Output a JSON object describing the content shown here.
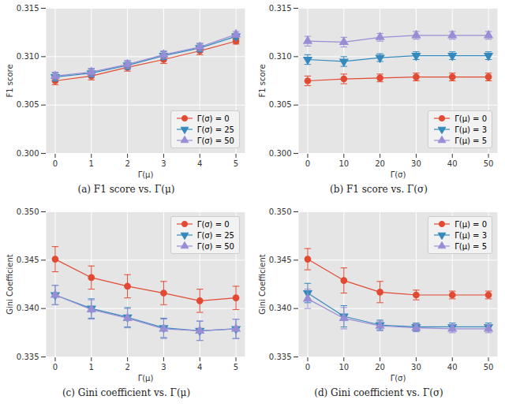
{
  "chart_data": [
    {
      "type": "line",
      "title": "(a) F1 score vs. Γ(μ)",
      "x_label": "Γ(μ)",
      "y_label": "F1 score",
      "x": [
        0,
        1,
        2,
        3,
        4,
        5
      ],
      "xlim": [
        -0.25,
        5.25
      ],
      "xticks": [
        0,
        1,
        2,
        3,
        4,
        5
      ],
      "ylim": [
        0.3,
        0.315
      ],
      "yticks": [
        {
          "value": 0.3,
          "label": "0.300"
        },
        {
          "value": 0.305,
          "label": "0.305"
        },
        {
          "value": 0.31,
          "label": "0.310"
        },
        {
          "value": 0.315,
          "label": "0.315"
        }
      ],
      "grid": true,
      "legend": "lower right",
      "series": [
        {
          "name": "Γ(σ) = 0",
          "color": "#e24a33",
          "marker": "circle",
          "values": [
            0.3075,
            0.308,
            0.3089,
            0.3097,
            0.3106,
            0.3116
          ],
          "errors": [
            0.0004,
            0.0004,
            0.0004,
            0.0004,
            0.0004,
            0.0003
          ]
        },
        {
          "name": "Γ(σ) = 25",
          "color": "#348abd",
          "marker": "triangle-down",
          "values": [
            0.3079,
            0.3083,
            0.3091,
            0.3101,
            0.3109,
            0.3121
          ],
          "errors": [
            0.0004,
            0.0004,
            0.0004,
            0.0004,
            0.0004,
            0.0003
          ]
        },
        {
          "name": "Γ(σ) = 50",
          "color": "#988ed5",
          "marker": "triangle-up",
          "values": [
            0.308,
            0.3084,
            0.3092,
            0.3102,
            0.311,
            0.3123
          ],
          "errors": [
            0.0004,
            0.0004,
            0.0004,
            0.0004,
            0.0004,
            0.0003
          ]
        }
      ]
    },
    {
      "type": "line",
      "title": "(b) F1 score vs. Γ(σ)",
      "x_label": "Γ(σ)",
      "y_label": "F1 score",
      "x": [
        0,
        10,
        20,
        30,
        40,
        50
      ],
      "xlim": [
        -2.5,
        52.5
      ],
      "xticks": [
        0,
        10,
        20,
        30,
        40,
        50
      ],
      "ylim": [
        0.3,
        0.315
      ],
      "yticks": [
        {
          "value": 0.3,
          "label": "0.300"
        },
        {
          "value": 0.305,
          "label": "0.305"
        },
        {
          "value": 0.31,
          "label": "0.310"
        },
        {
          "value": 0.315,
          "label": "0.315"
        }
      ],
      "grid": true,
      "legend": "lower right",
      "series": [
        {
          "name": "Γ(μ) = 0",
          "color": "#e24a33",
          "marker": "circle",
          "values": [
            0.3075,
            0.3077,
            0.3078,
            0.3079,
            0.3079,
            0.3079
          ],
          "errors": [
            0.0005,
            0.0005,
            0.0004,
            0.0004,
            0.0004,
            0.0004
          ]
        },
        {
          "name": "Γ(μ) = 3",
          "color": "#348abd",
          "marker": "triangle-down",
          "values": [
            0.3097,
            0.3095,
            0.3099,
            0.3101,
            0.3101,
            0.3101
          ],
          "errors": [
            0.0005,
            0.0005,
            0.0004,
            0.0004,
            0.0004,
            0.0004
          ]
        },
        {
          "name": "Γ(μ) = 5",
          "color": "#988ed5",
          "marker": "triangle-up",
          "values": [
            0.3116,
            0.3115,
            0.312,
            0.3122,
            0.3122,
            0.3122
          ],
          "errors": [
            0.0005,
            0.0005,
            0.0004,
            0.0004,
            0.0004,
            0.0004
          ]
        }
      ]
    },
    {
      "type": "line",
      "title": "(c) Gini coefficient vs. Γ(μ)",
      "x_label": "Γ(μ)",
      "y_label": "Gini Coefficient",
      "x": [
        0,
        1,
        2,
        3,
        4,
        5
      ],
      "xlim": [
        -0.25,
        5.25
      ],
      "xticks": [
        0,
        1,
        2,
        3,
        4,
        5
      ],
      "ylim": [
        0.335,
        0.35
      ],
      "yticks": [
        {
          "value": 0.335,
          "label": "0.335"
        },
        {
          "value": 0.34,
          "label": "0.340"
        },
        {
          "value": 0.345,
          "label": "0.345"
        },
        {
          "value": 0.35,
          "label": "0.350"
        }
      ],
      "grid": true,
      "legend": "upper right",
      "series": [
        {
          "name": "Γ(σ) = 0",
          "color": "#e24a33",
          "marker": "circle",
          "values": [
            0.3451,
            0.3432,
            0.3423,
            0.3416,
            0.3408,
            0.3411
          ],
          "errors": [
            0.0013,
            0.0012,
            0.0012,
            0.0012,
            0.0012,
            0.0012
          ]
        },
        {
          "name": "Γ(σ) = 25",
          "color": "#348abd",
          "marker": "triangle-down",
          "values": [
            0.3414,
            0.34,
            0.3391,
            0.338,
            0.3377,
            0.3379
          ],
          "errors": [
            0.001,
            0.001,
            0.001,
            0.001,
            0.001,
            0.001
          ]
        },
        {
          "name": "Γ(σ) = 50",
          "color": "#988ed5",
          "marker": "triangle-up",
          "values": [
            0.3414,
            0.3399,
            0.339,
            0.3379,
            0.3377,
            0.3379
          ],
          "errors": [
            0.001,
            0.001,
            0.001,
            0.001,
            0.001,
            0.001
          ]
        }
      ]
    },
    {
      "type": "line",
      "title": "(d) Gini coefficient vs. Γ(σ)",
      "x_label": "Γ(σ)",
      "y_label": "Gini Coefficient",
      "x": [
        0,
        10,
        20,
        30,
        40,
        50
      ],
      "xlim": [
        -2.5,
        52.5
      ],
      "xticks": [
        0,
        10,
        20,
        30,
        40,
        50
      ],
      "ylim": [
        0.335,
        0.35
      ],
      "yticks": [
        {
          "value": 0.335,
          "label": "0.335"
        },
        {
          "value": 0.34,
          "label": "0.340"
        },
        {
          "value": 0.345,
          "label": "0.345"
        },
        {
          "value": 0.35,
          "label": "0.350"
        }
      ],
      "grid": true,
      "legend": "upper right",
      "series": [
        {
          "name": "Γ(μ) = 0",
          "color": "#e24a33",
          "marker": "circle",
          "values": [
            0.3451,
            0.3429,
            0.3417,
            0.3414,
            0.3414,
            0.3414
          ],
          "errors": [
            0.0011,
            0.0013,
            0.0011,
            0.0005,
            0.0004,
            0.0004
          ]
        },
        {
          "name": "Γ(μ) = 3",
          "color": "#348abd",
          "marker": "triangle-down",
          "values": [
            0.3416,
            0.3392,
            0.3383,
            0.3381,
            0.3381,
            0.3381
          ],
          "errors": [
            0.001,
            0.0011,
            0.0005,
            0.0004,
            0.0004,
            0.0004
          ]
        },
        {
          "name": "Γ(μ) = 5",
          "color": "#988ed5",
          "marker": "triangle-up",
          "values": [
            0.341,
            0.339,
            0.3382,
            0.338,
            0.3379,
            0.3379
          ],
          "errors": [
            0.001,
            0.0011,
            0.0005,
            0.0004,
            0.0004,
            0.0004
          ]
        }
      ]
    }
  ]
}
